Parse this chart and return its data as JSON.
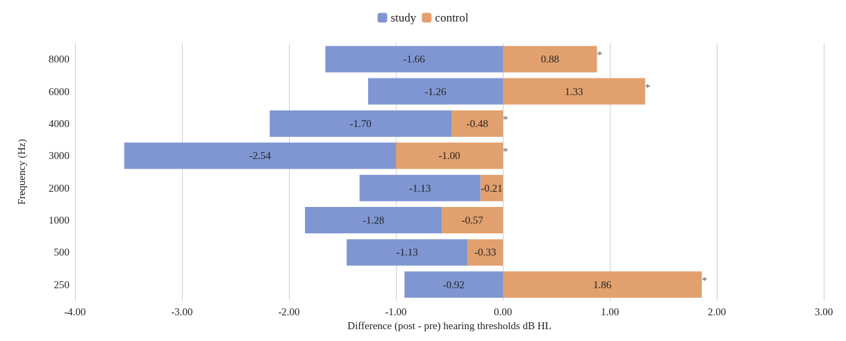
{
  "chart_data": {
    "type": "bar",
    "orientation": "horizontal",
    "stacked": true,
    "xlabel": "Difference (post - pre) hearing thresholds dB HL",
    "ylabel": "Frequency (Hz)",
    "categories": [
      "8000",
      "6000",
      "4000",
      "3000",
      "2000",
      "1000",
      "500",
      "250"
    ],
    "series": [
      {
        "name": "control",
        "color": "#e2a06e",
        "values": [
          0.88,
          1.33,
          -0.48,
          -1.0,
          -0.21,
          -0.57,
          -0.33,
          1.86
        ],
        "value_labels": [
          "0.88",
          "1.33",
          "-0.48",
          "-1.00",
          "-0.21",
          "-0.57",
          "-0.33",
          "1.86"
        ]
      },
      {
        "name": "study",
        "color": "#7f96d2",
        "values": [
          -1.66,
          -1.26,
          -1.7,
          -2.54,
          -1.13,
          -1.28,
          -1.13,
          -0.92
        ],
        "value_labels": [
          "-1.66",
          "-1.26",
          "-1.70",
          "-2.54",
          "-1.13",
          "-1.28",
          "-1.13",
          "-0.92"
        ]
      }
    ],
    "xlim": [
      -4,
      3
    ],
    "xticks": [
      {
        "value": -4,
        "label": "-4.00"
      },
      {
        "value": -3,
        "label": "-3.00"
      },
      {
        "value": -2,
        "label": "-2.00"
      },
      {
        "value": -1,
        "label": "-1.00"
      },
      {
        "value": 0,
        "label": "0.00"
      },
      {
        "value": 1,
        "label": "1.00"
      },
      {
        "value": 2,
        "label": "2.00"
      },
      {
        "value": 3,
        "label": "3.00"
      }
    ],
    "grid": "x",
    "legend": "top",
    "annotations": [
      {
        "text": "*",
        "x": 0.88,
        "y": "8000"
      },
      {
        "text": "*",
        "x": 1.33,
        "y": "6000"
      },
      {
        "text": "*",
        "x": 0,
        "y": "4000"
      },
      {
        "text": "*",
        "x": 0,
        "y": "3000"
      },
      {
        "text": "*",
        "x": 1.86,
        "y": "250"
      }
    ]
  }
}
